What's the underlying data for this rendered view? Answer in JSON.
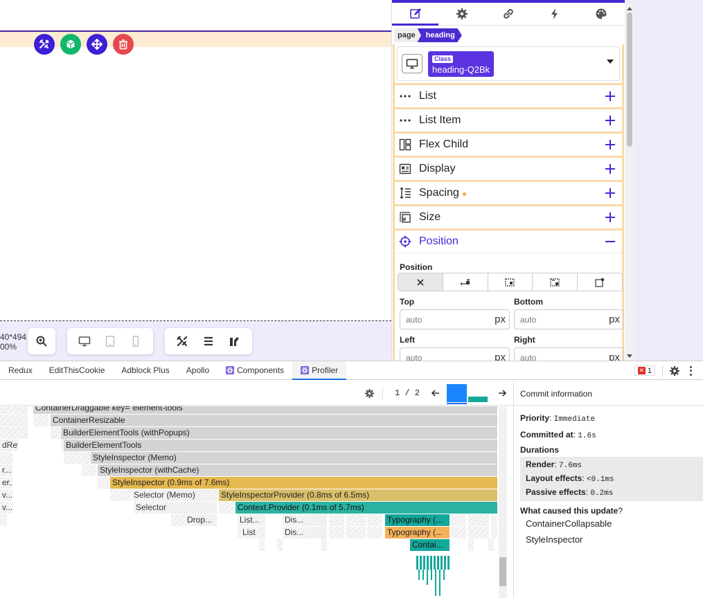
{
  "canvas": {
    "viewport_size": "40*494",
    "zoom": "00%"
  },
  "inspector": {
    "tabs": [
      "edit-icon",
      "gear-icon",
      "link-icon",
      "bolt-icon",
      "palette-icon"
    ],
    "breadcrumb": {
      "page": "page",
      "current": "heading"
    },
    "class_row": {
      "badge": "Class",
      "name": "heading-Q2Bk"
    },
    "sections": [
      {
        "label": "List",
        "icon": "dots-icon"
      },
      {
        "label": "List Item",
        "icon": "dots-icon"
      },
      {
        "label": "Flex Child",
        "icon": "flex-child-icon"
      },
      {
        "label": "Display",
        "icon": "display-icon"
      },
      {
        "label": "Spacing",
        "icon": "spacing-icon",
        "modified": true
      },
      {
        "label": "Size",
        "icon": "size-icon"
      }
    ],
    "position": {
      "label": "Position",
      "field_label": "Position",
      "top": {
        "label": "Top",
        "value": "auto",
        "unit": "px"
      },
      "bottom": {
        "label": "Bottom",
        "value": "auto",
        "unit": "px"
      },
      "left": {
        "label": "Left",
        "value": "auto",
        "unit": "px"
      },
      "right": {
        "label": "Right",
        "value": "auto",
        "unit": "px"
      }
    }
  },
  "devtools": {
    "tabs": [
      "Redux",
      "EditThisCookie",
      "Adblock Plus",
      "Apollo",
      "Components",
      "Profiler"
    ],
    "active_tab": "Profiler",
    "error_count": "1",
    "commit_index": "1 / 2",
    "flame": {
      "bars": [
        {
          "label": "ContainerDraggable key=\"element-tools\""
        },
        {
          "label": "ContainerResizable"
        },
        {
          "label": "BuilderElementTools (withPopups)"
        },
        {
          "label": "BuilderElementTools"
        },
        {
          "label": "StyleInspector (Memo)"
        },
        {
          "label": "StyleInspector (withCache)"
        },
        {
          "label": "StyleInspector (0.9ms of 7.6ms)"
        },
        {
          "label": "Selector (Memo)"
        },
        {
          "label": "StyleInspectorProvider (0.8ms of 6.5ms)"
        },
        {
          "label": "Selector"
        },
        {
          "label": "Context.Provider (0.1ms of 5.7ms)"
        },
        {
          "label": "Drop..."
        },
        {
          "label": "List..."
        },
        {
          "label": "Dis..."
        },
        {
          "label": "Typography (..."
        },
        {
          "label": "List"
        },
        {
          "label": "Dis..."
        },
        {
          "label": "Typography (..."
        },
        {
          "label": "Contai..."
        }
      ],
      "left_fragments": [
        "dRef)",
        "r...",
        "er...",
        "v...",
        "v...",
        "r..."
      ]
    },
    "commit_info": {
      "title": "Commit information",
      "priority_label": "Priority",
      "priority": "Immediate",
      "committed_label": "Committed at",
      "committed": "1.6s",
      "durations_label": "Durations",
      "render_label": "Render",
      "render": "7.6ms",
      "layout_label": "Layout effects",
      "layout": "<0.1ms",
      "passive_label": "Passive effects",
      "passive": "0.2ms",
      "caused_label": "What caused this update",
      "causes": [
        "ContainerCollapsable",
        "StyleInspector"
      ]
    }
  }
}
